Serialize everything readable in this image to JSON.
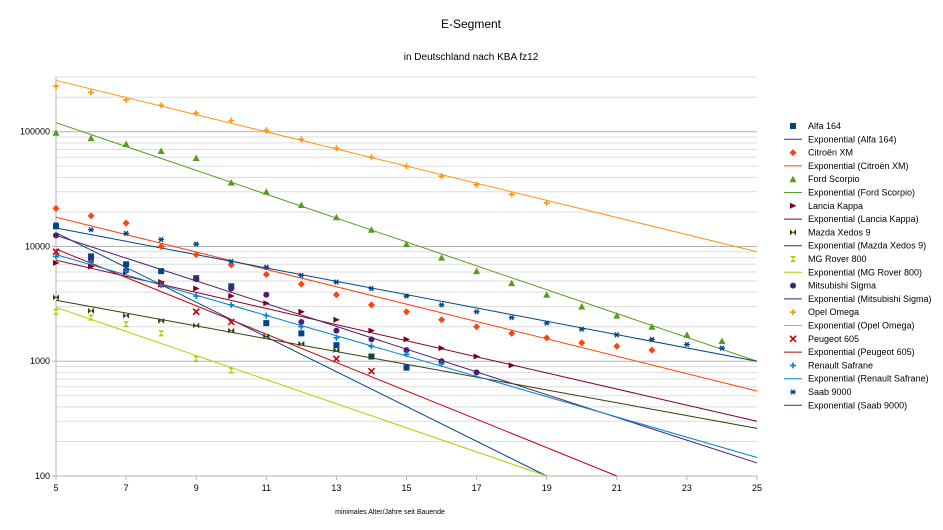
{
  "chart_data": {
    "type": "scatter",
    "title": "E-Segment",
    "subtitle": "in Deutschland nach KBA fz12",
    "xlabel": "minimales Alter/Jahre seit Bauende",
    "ylabel": "",
    "xlim": [
      5,
      25
    ],
    "ylim": [
      100,
      300000
    ],
    "yscale": "log",
    "x_ticks": [
      5,
      7,
      9,
      11,
      13,
      15,
      17,
      19,
      21,
      23,
      25
    ],
    "y_ticks": [
      100,
      1000,
      10000,
      100000
    ],
    "y_tick_labels": [
      "100",
      "1000",
      "10000",
      "100000"
    ],
    "grid": true,
    "legend": "right",
    "series": [
      {
        "name": "Alfa 164",
        "marker": "square",
        "color": "#004586",
        "x": [
          5,
          6,
          7,
          8,
          9,
          10,
          11,
          12,
          13,
          14,
          15
        ],
        "y": [
          15000,
          8200,
          7000,
          6100,
          5300,
          4500,
          2150,
          1750,
          1380,
          1100,
          880
        ],
        "trend_name": "Exponential (Alfa 164)",
        "trend": [
          13200,
          100,
          19.0
        ]
      },
      {
        "name": "Citroën XM",
        "marker": "diamond",
        "color": "#ff420e",
        "x": [
          5,
          6,
          7,
          8,
          9,
          10,
          11,
          12,
          13,
          14,
          15,
          16,
          17,
          18,
          19,
          20,
          21,
          22
        ],
        "y": [
          21500,
          18500,
          16000,
          10000,
          8500,
          6900,
          5700,
          4700,
          3800,
          3100,
          2700,
          2300,
          2000,
          1750,
          1600,
          1450,
          1350,
          1250
        ],
        "trend_name": "Exponential (Citroën XM)",
        "trend": [
          18000,
          550,
          25
        ]
      },
      {
        "name": "Ford Scorpio",
        "marker": "triangle",
        "color": "#579d1c",
        "x": [
          5,
          6,
          7,
          8,
          9,
          10,
          11,
          12,
          13,
          14,
          15,
          16,
          17,
          18,
          19,
          20,
          21,
          22,
          23,
          24
        ],
        "y": [
          98000,
          88000,
          78000,
          68000,
          59000,
          36000,
          30000,
          23000,
          18000,
          14000,
          10500,
          8000,
          6100,
          4800,
          3800,
          3000,
          2500,
          2000,
          1700,
          1500
        ],
        "trend_name": "Exponential (Ford Scorpio)",
        "trend": [
          120000,
          1000,
          25
        ]
      },
      {
        "name": "Lancia Kappa",
        "marker": "triangle-right",
        "color": "#7e0021",
        "x": [
          5,
          6,
          7,
          8,
          9,
          10,
          11,
          12,
          13,
          14,
          15,
          16,
          17,
          18
        ],
        "y": [
          7200,
          6700,
          6000,
          4900,
          4300,
          3700,
          3200,
          2700,
          2300,
          1850,
          1550,
          1300,
          1100,
          920
        ],
        "trend_name": "Exponential (Lancia Kappa)",
        "trend": [
          7600,
          300,
          25
        ]
      },
      {
        "name": "Mazda Xedos 9",
        "marker": "bowtie",
        "color": "#314004",
        "x": [
          5,
          6,
          7,
          8,
          9,
          10,
          11,
          12,
          13,
          14
        ],
        "y": [
          3600,
          2750,
          2500,
          2250,
          2050,
          1850,
          1650,
          1420,
          1250,
          1100
        ],
        "trend_name": "Exponential (Mazda Xedos 9)",
        "trend": [
          3400,
          260,
          25
        ]
      },
      {
        "name": "MG Rover 800",
        "marker": "hourglass",
        "color": "#aecf00",
        "x": [
          5,
          6,
          7,
          8,
          9,
          10
        ],
        "y": [
          2700,
          2400,
          2100,
          1750,
          1050,
          830
        ],
        "trend_name": "Exponential (MG Rover 800)",
        "trend": [
          2950,
          100,
          19.0
        ]
      },
      {
        "name": "Mitsubishi Sigma",
        "marker": "circle",
        "color": "#4b1f6f",
        "x": [
          5,
          6,
          7,
          8,
          9,
          10,
          11,
          12,
          13,
          14,
          15,
          16,
          17
        ],
        "y": [
          12500,
          7700,
          6200,
          4700,
          5200,
          4300,
          3800,
          2200,
          1850,
          1550,
          1250,
          1000,
          800
        ],
        "trend_name": "Exponential (Mitsubishi Sigma)",
        "trend": [
          12500,
          130,
          25
        ]
      },
      {
        "name": "Opel Omega",
        "marker": "plus",
        "color": "#ff950e",
        "x": [
          5,
          6,
          7,
          8,
          9,
          10,
          11,
          12,
          13,
          14,
          15,
          16,
          17,
          18,
          19
        ],
        "y": [
          250000,
          220000,
          190000,
          170000,
          145000,
          125000,
          103000,
          86000,
          72000,
          60000,
          50000,
          41000,
          34500,
          28500,
          24000
        ],
        "trend_name": "Exponential (Opel Omega)",
        "trend": [
          280000,
          9000,
          25
        ]
      },
      {
        "name": "Peugeot 605",
        "marker": "x",
        "color": "#c5000b",
        "x": [
          5,
          8,
          9,
          10,
          13,
          14
        ],
        "y": [
          9000,
          4700,
          2700,
          2200,
          1050,
          820
        ],
        "trend_name": "Exponential (Peugeot 605)",
        "trend": [
          9500,
          100,
          21.0
        ]
      },
      {
        "name": "Renault Safrane",
        "marker": "plus",
        "color": "#0084d1",
        "x": [
          5,
          6,
          7,
          8,
          9,
          10,
          11,
          12,
          13,
          14,
          15,
          16
        ],
        "y": [
          8200,
          7300,
          6100,
          4600,
          3700,
          3100,
          2500,
          2000,
          1600,
          1350,
          1150,
          950
        ],
        "trend_name": "Exponential (Renault Safrane)",
        "trend": [
          8500,
          145,
          25
        ]
      },
      {
        "name": "Saab 9000",
        "marker": "asterisk",
        "color": "#004586",
        "x": [
          5,
          6,
          7,
          8,
          9,
          10,
          11,
          12,
          13,
          14,
          15,
          16,
          17,
          18,
          19,
          20,
          21,
          22,
          23,
          24
        ],
        "y": [
          15500,
          14000,
          13000,
          11500,
          10500,
          7400,
          6600,
          5600,
          4900,
          4300,
          3700,
          3100,
          2700,
          2400,
          2150,
          1900,
          1700,
          1550,
          1400,
          1300
        ],
        "trend_name": "Exponential (Saab 9000)",
        "trend": [
          14500,
          1000,
          25
        ]
      }
    ]
  }
}
